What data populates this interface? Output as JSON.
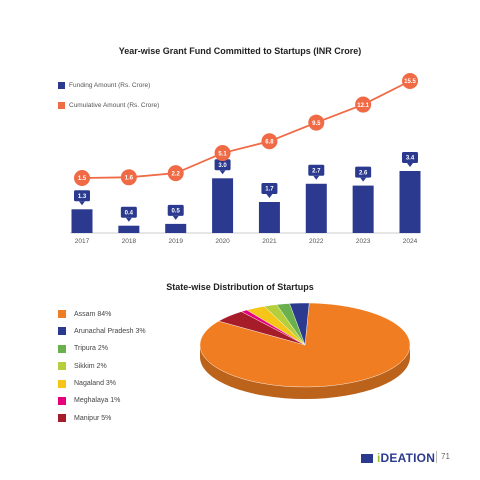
{
  "chart_data": [
    {
      "type": "bar",
      "title": "Year-wise Grant Fund Committed to Startups (INR Crore)",
      "categories": [
        "2017",
        "2018",
        "2019",
        "2020",
        "2021",
        "2022",
        "2023",
        "2024"
      ],
      "series": [
        {
          "name": "Funding Amount (Rs. Crore)",
          "type": "bar",
          "color": "#2b3a8f",
          "values": [
            1.3,
            0.4,
            0.5,
            3.0,
            1.7,
            2.7,
            2.6,
            3.4
          ]
        },
        {
          "name": "Cumulative Amount (Rs. Crore)",
          "type": "line",
          "color": "#ef6a45",
          "values": [
            1.5,
            1.6,
            2.2,
            5.1,
            6.8,
            9.5,
            12.1,
            15.5
          ]
        }
      ],
      "bar_labels": [
        "1.3",
        "0.4",
        "0.5",
        "3.0",
        "1.7",
        "2.7",
        "2.6",
        "3.4"
      ],
      "line_labels": [
        "1.5",
        "1.6",
        "2.2",
        "5.1",
        "6.8",
        "9.5",
        "12.1",
        "15.5"
      ],
      "grid": false,
      "legend": "top-left"
    },
    {
      "type": "pie",
      "title": "State-wise Distribution of Startups",
      "legend": "left",
      "slices": [
        {
          "label": "Assam 84%",
          "value": 84,
          "color": "#f07d22"
        },
        {
          "label": "Arunachal Pradesh 3%",
          "value": 3,
          "color": "#2b3a8f"
        },
        {
          "label": "Tripura 2%",
          "value": 2,
          "color": "#6ab04c"
        },
        {
          "label": "Sikkim 2%",
          "value": 2,
          "color": "#b5cf3c"
        },
        {
          "label": "Nagaland 3%",
          "value": 3,
          "color": "#f5c518"
        },
        {
          "label": "Meghalaya 1%",
          "value": 1,
          "color": "#e6007e"
        },
        {
          "label": "Manipur 5%",
          "value": 5,
          "color": "#a61c28"
        }
      ]
    }
  ],
  "footer": {
    "brand_prefix": "i",
    "brand_rest": "DEATION",
    "page_number": "71"
  }
}
